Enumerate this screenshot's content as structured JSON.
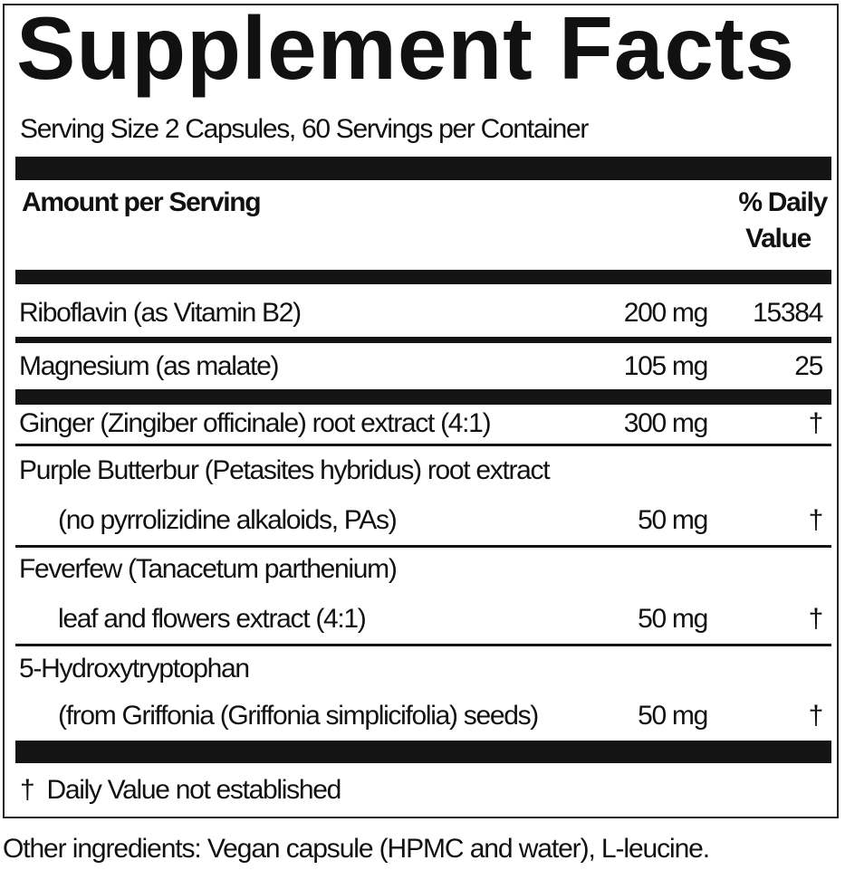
{
  "title": "Supplement Facts",
  "serving": "Serving Size 2 Capsules, 60 Servings per Container",
  "header": {
    "amount": "Amount per Serving",
    "dv_line1": "% Daily",
    "dv_line2": "Value"
  },
  "rows": [
    {
      "name": "Riboflavin (as Vitamin B2)",
      "amount": "200 mg",
      "dv": "15384"
    },
    {
      "name": "Magnesium (as malate)",
      "amount": "105 mg",
      "dv": "25"
    },
    {
      "name": "Ginger (Zingiber officinale) root extract (4:1)",
      "amount": "300 mg",
      "dv": "†"
    },
    {
      "name": "Purple Butterbur (Petasites hybridus) root extract",
      "name2": "(no pyrrolizidine alkaloids, PAs)",
      "amount": "50 mg",
      "dv": "†"
    },
    {
      "name": "Feverfew (Tanacetum parthenium)",
      "name2": "leaf and flowers extract (4:1)",
      "amount": "50 mg",
      "dv": "†"
    },
    {
      "name": "5-Hydroxytryptophan",
      "name2": "(from Griffonia (Griffonia simplicifolia) seeds)",
      "amount": "50 mg",
      "dv": "†"
    }
  ],
  "footnote": "†  Daily Value not established",
  "other": "Other ingredients: Vegan capsule (HPMC and water), L-leucine."
}
